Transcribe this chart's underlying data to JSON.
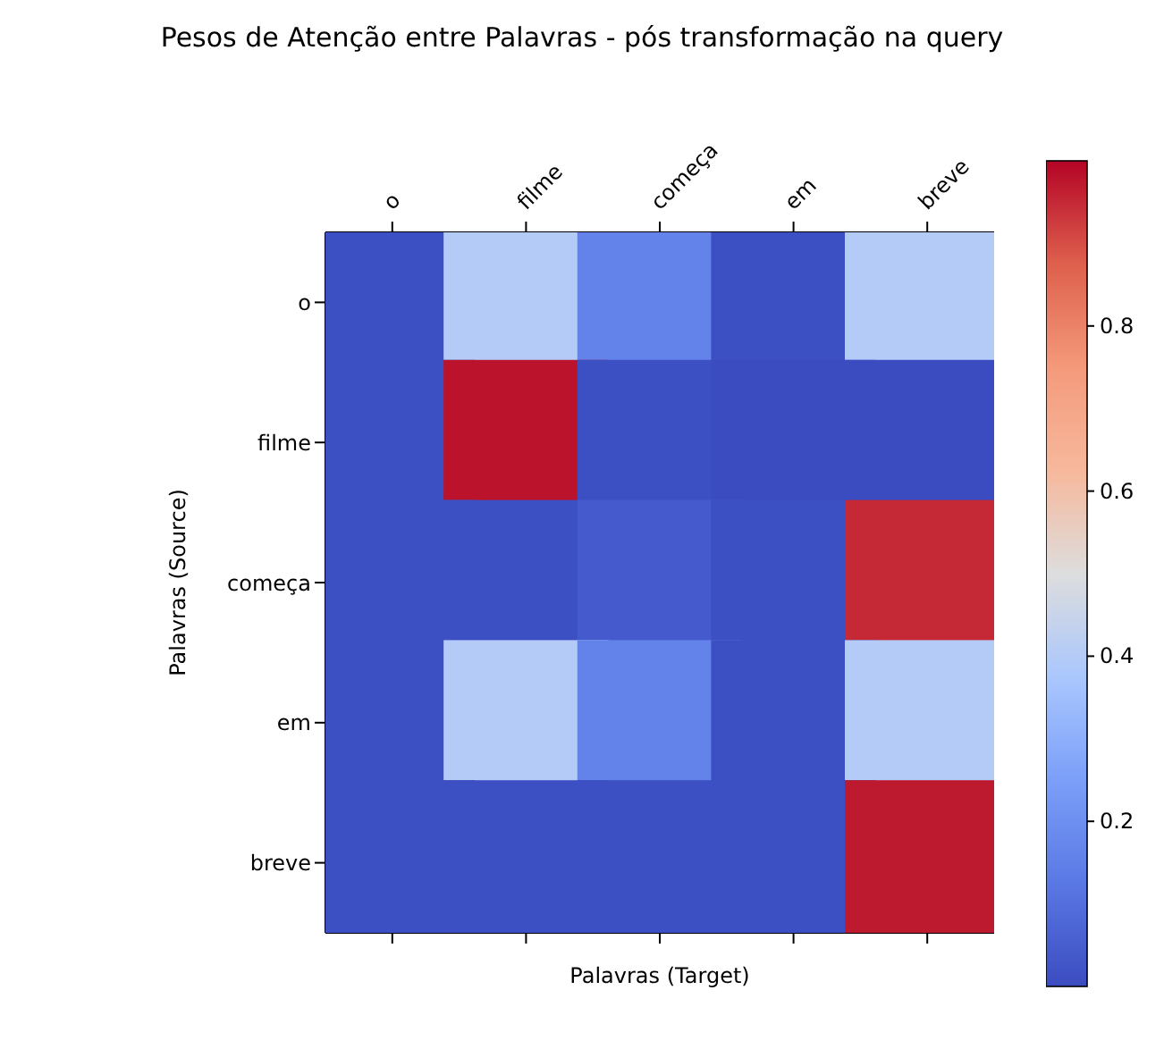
{
  "chart_data": {
    "type": "heatmap",
    "title": "Pesos de Atenção entre Palavras - pós transformação na query",
    "xlabel": "Palavras (Target)",
    "ylabel": "Palavras (Source)",
    "categories": [
      "o",
      "filme",
      "começa",
      "em",
      "breve"
    ],
    "y_categories": [
      "o",
      "filme",
      "começa",
      "em",
      "breve"
    ],
    "cells": [
      [
        0.01,
        0.4,
        0.16,
        0.01,
        0.4
      ],
      [
        0.01,
        0.98,
        0.01,
        0.0,
        0.0
      ],
      [
        0.01,
        0.01,
        0.04,
        0.01,
        0.95
      ],
      [
        0.01,
        0.4,
        0.16,
        0.01,
        0.4
      ],
      [
        0.01,
        0.01,
        0.01,
        0.01,
        0.97
      ]
    ],
    "clim": [
      0,
      1
    ],
    "cticks": [
      0.2,
      0.4,
      0.6,
      0.8
    ]
  }
}
